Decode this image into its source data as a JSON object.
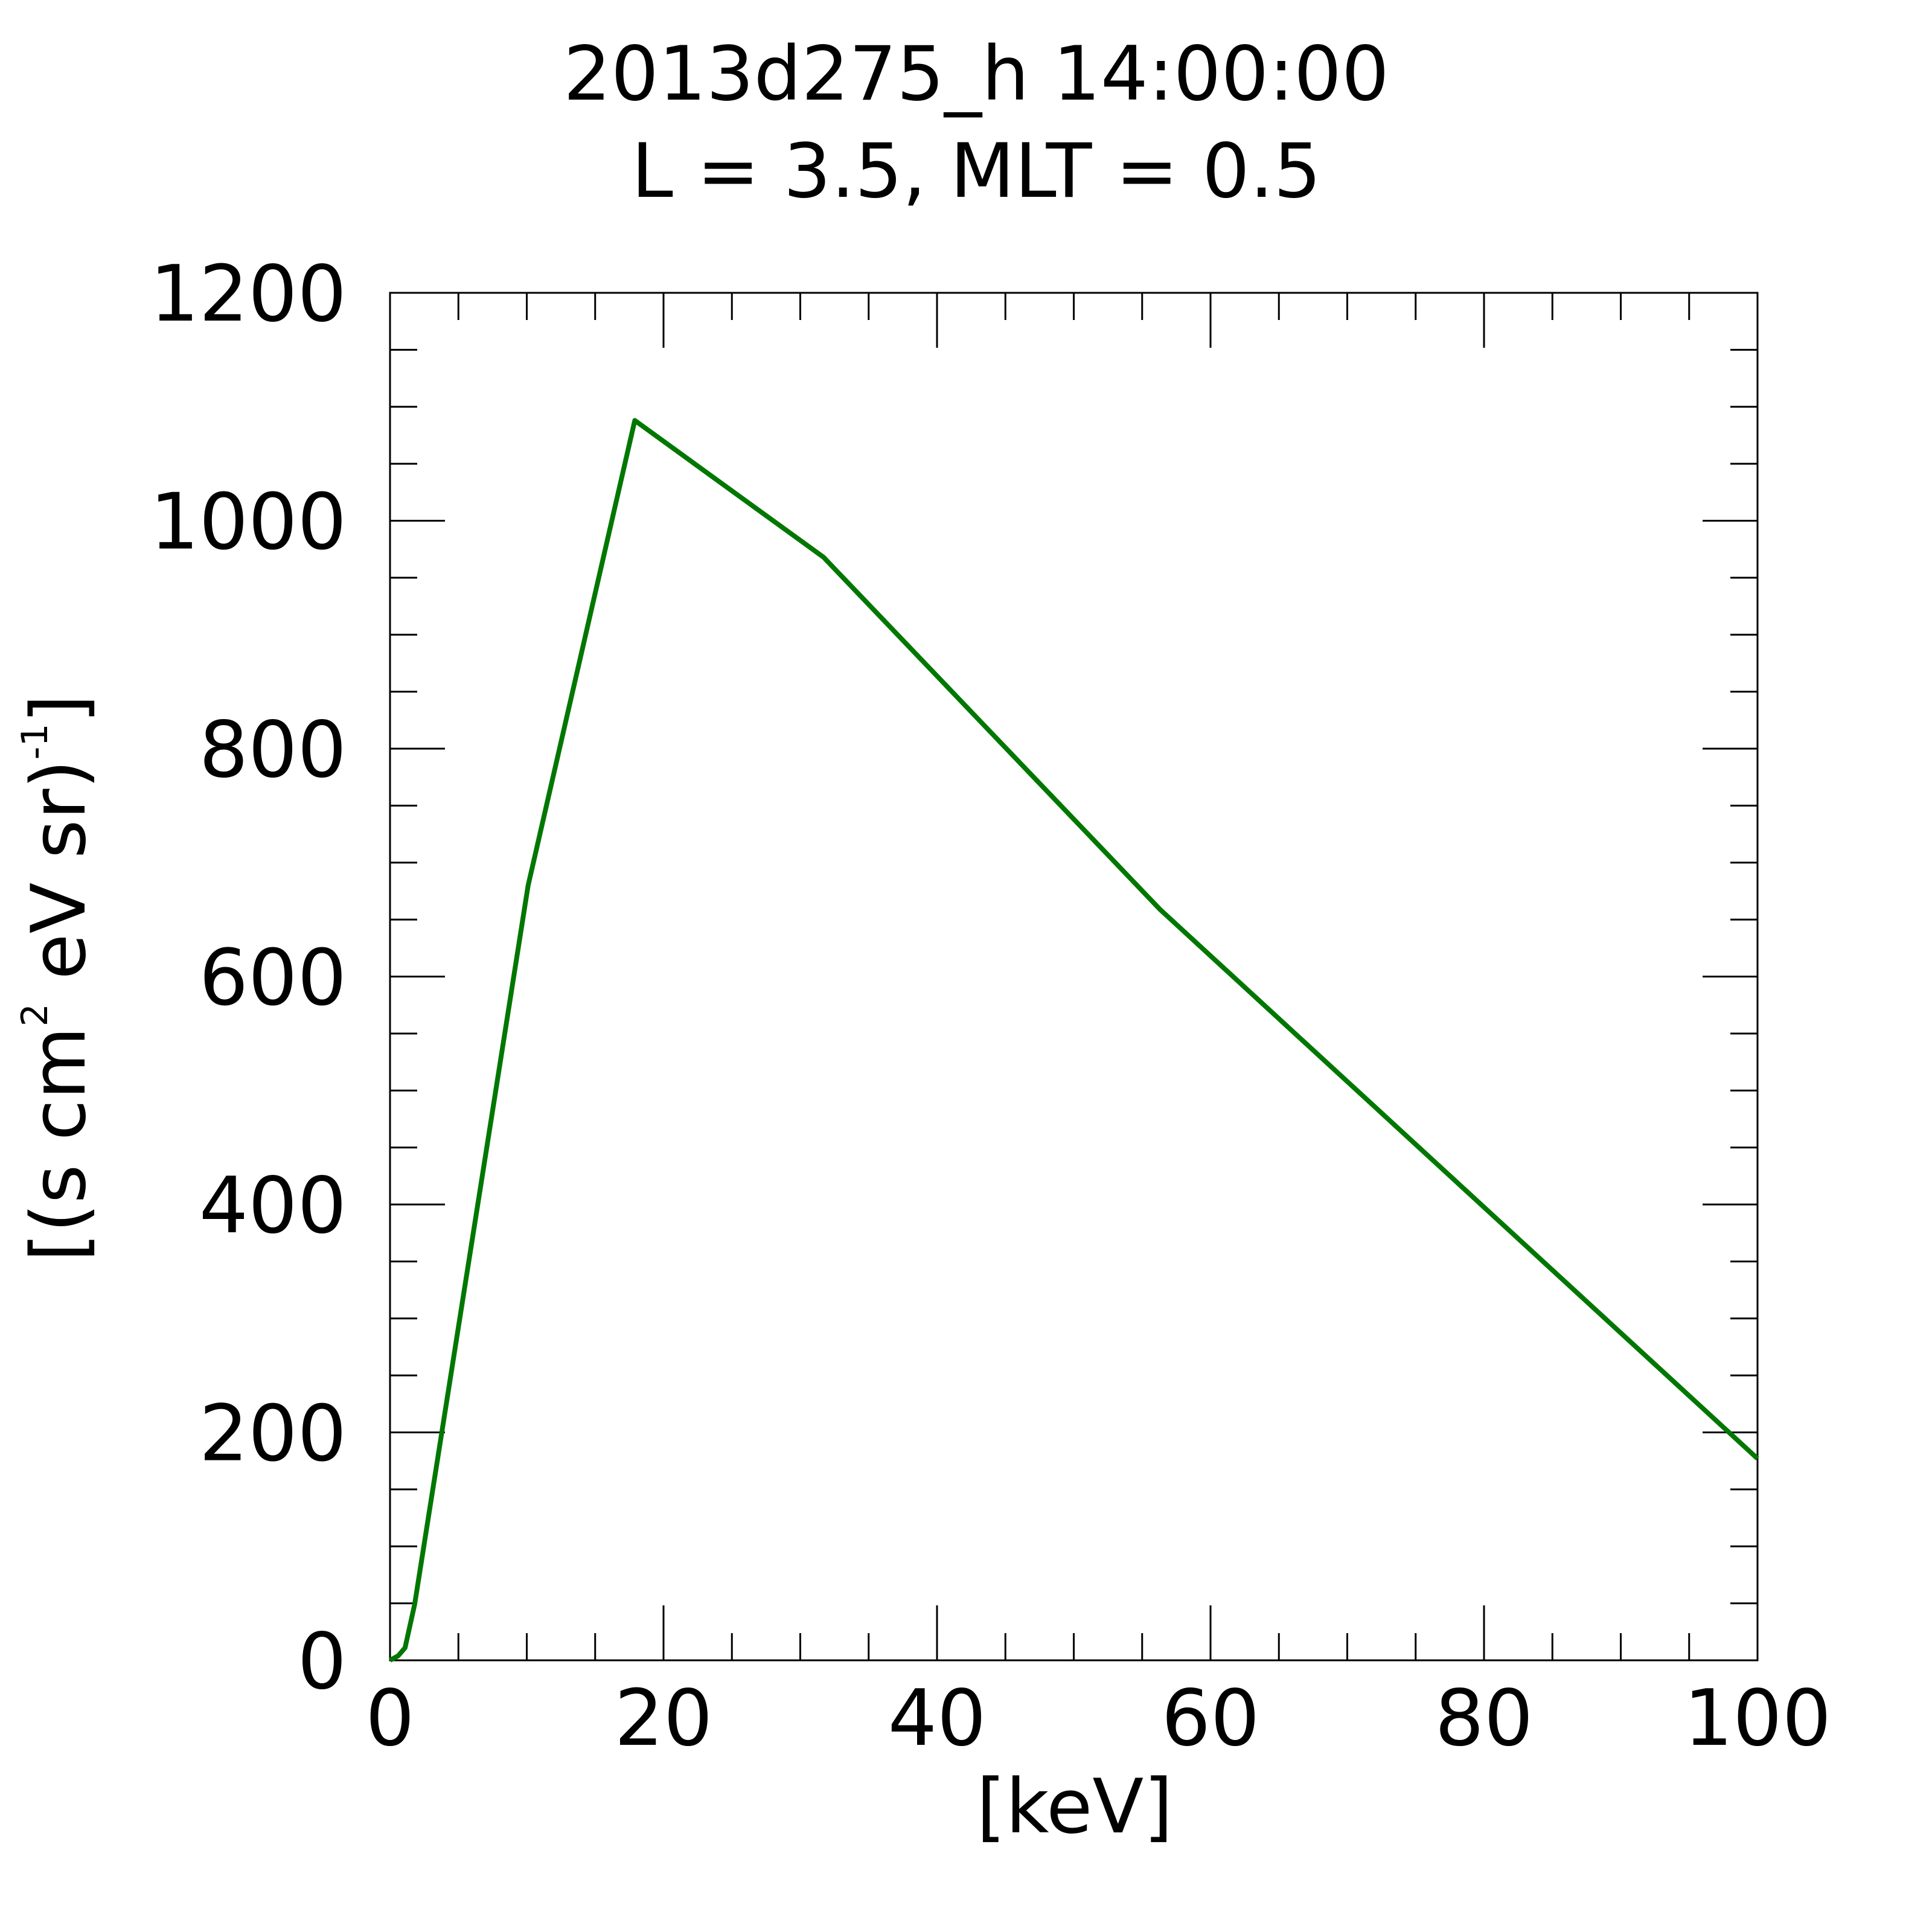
{
  "chart_data": {
    "type": "line",
    "title": [
      "2013d275_h  14:00:00",
      "L = 3.5, MLT =  0.5"
    ],
    "x_label": "[keV]",
    "y_label": [
      "[(s cm",
      "2",
      " eV sr)",
      "-1",
      "]"
    ],
    "x": [
      0,
      0.6,
      1.1,
      1.8,
      10.1,
      17.9,
      31.7,
      56.3,
      100
    ],
    "series": [
      {
        "color": "#007700",
        "values": [
          0,
          4,
          11,
          49,
          680,
          1088,
          968,
          659,
          177
        ]
      }
    ],
    "xlim": [
      0,
      100
    ],
    "xticks": [
      0,
      20,
      40,
      60,
      80,
      100
    ],
    "xminorticks": [
      5,
      10,
      15,
      25,
      30,
      35,
      45,
      50,
      55,
      65,
      70,
      75,
      85,
      90,
      95
    ],
    "ylim": [
      0,
      1200
    ],
    "yticks": [
      0,
      200,
      400,
      600,
      800,
      1000,
      1200
    ],
    "yminorticks": [
      50,
      100,
      150,
      250,
      300,
      350,
      450,
      500,
      550,
      650,
      700,
      750,
      850,
      900,
      950,
      1050,
      1100,
      1150
    ]
  }
}
